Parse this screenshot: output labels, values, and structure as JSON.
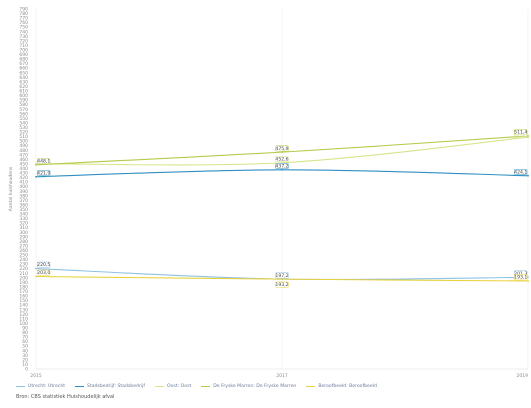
{
  "chart_data": {
    "type": "line",
    "title": "",
    "xlabel": "",
    "ylabel": "Aantal huishoudens",
    "x": [
      "2015",
      "2017",
      "2019"
    ],
    "ylim": [
      0,
      790
    ],
    "yticks": [
      0,
      10,
      20,
      30,
      40,
      50,
      60,
      70,
      80,
      90,
      100,
      110,
      120,
      130,
      140,
      150,
      160,
      170,
      180,
      190,
      200,
      210,
      220,
      230,
      240,
      250,
      260,
      270,
      280,
      290,
      300,
      310,
      320,
      330,
      340,
      350,
      360,
      370,
      380,
      390,
      400,
      410,
      420,
      430,
      440,
      450,
      460,
      470,
      480,
      490,
      500,
      510,
      520,
      530,
      540,
      550,
      560,
      570,
      580,
      590,
      600,
      610,
      620,
      630,
      640,
      650,
      660,
      670,
      680,
      690,
      700,
      710,
      720,
      730,
      740,
      750,
      760,
      770,
      780,
      790
    ],
    "ytick_labels": [
      "0",
      "10",
      "20",
      "30",
      "40",
      "50",
      "60",
      "70",
      "80",
      "90",
      "100",
      "110",
      "120",
      "130",
      "140",
      "150",
      "160",
      "170",
      "180",
      "190",
      "200",
      "210",
      "220",
      "230",
      "240",
      "250",
      "260",
      "270",
      "280",
      "290",
      "300",
      "310",
      "320",
      "330",
      "340",
      "350",
      "360",
      "370",
      "380",
      "390",
      "400",
      "410",
      "420",
      "430",
      "440",
      "450",
      "460",
      "470",
      "480",
      "490",
      "500",
      "510",
      "520",
      "530",
      "540",
      "550",
      "560",
      "570",
      "580",
      "590",
      "600",
      "610",
      "620",
      "630",
      "640",
      "650",
      "660",
      "670",
      "680",
      "690",
      "700",
      "710",
      "720",
      "730",
      "740",
      "750",
      "760",
      "770",
      "780",
      "790"
    ],
    "grid": true,
    "legend_position": "bottom",
    "series": [
      {
        "name": "Utrecht: Utrecht",
        "color": "#8fc1e3",
        "values": [
          220.5,
          197.2,
          201.3
        ],
        "labels": [
          "220,5",
          "197,2",
          "201,3"
        ]
      },
      {
        "name": "Stadsbedrijf: Stadsbedrijf",
        "color": "#2f8fc2",
        "values": [
          421.9,
          437.2,
          424.1
        ],
        "labels": [
          "421,9",
          "437,2",
          "424,1"
        ]
      },
      {
        "name": "Oost: Oost",
        "color": "#d8e48a",
        "values": [
          450.6,
          452.6,
          508.6
        ],
        "labels": [
          "",
          "452,6",
          "508,6"
        ]
      },
      {
        "name": "De Fryske Marren: De Fryske Marren",
        "color": "#b6c94a",
        "values": [
          448.1,
          475.9,
          511.4
        ],
        "labels": [
          "448,1",
          "475,9",
          "511,4"
        ]
      },
      {
        "name": "Beroofbeeld: Beroofbeeld",
        "color": "#e8d23a",
        "values": [
          203.0,
          197.2,
          193.1
        ],
        "labels": [
          "203,0",
          "",
          "193,1"
        ]
      }
    ],
    "extra_labels": [
      "193,2"
    ]
  },
  "source_text": "Bron: CBS statistiek Huishoudelijk afval"
}
